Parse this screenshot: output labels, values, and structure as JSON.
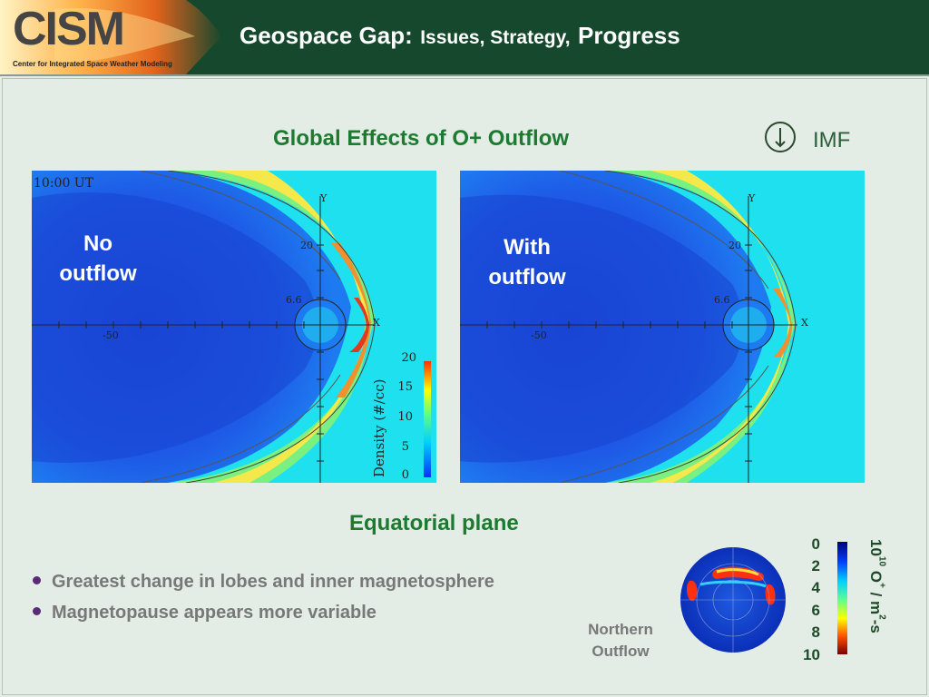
{
  "header": {
    "logo_text": "CISM",
    "logo_subtitle": "Center for Integrated Space Weather Modeling",
    "title_main": "Geospace Gap:",
    "title_sub": "Issues, Strategy,",
    "title_progress": "Progress",
    "colors": {
      "bar": "#16482d",
      "title_text": "#ffffff"
    }
  },
  "slide": {
    "heading": "Global Effects of O+ Outflow",
    "imf_label": "IMF",
    "imf_icon": "down-arrow-circle-icon",
    "equatorial_label": "Equatorial plane",
    "heading_color": "#1c7a31"
  },
  "panels": {
    "left": {
      "label_line1": "No",
      "label_line2": "outflow",
      "time": "10:00 UT",
      "axis_y": "Y",
      "axis_x": "X",
      "tick_20": "20",
      "tick_66": "6.6",
      "tick_m50": "-50"
    },
    "right": {
      "label_line1": "With",
      "label_line2": "outflow",
      "axis_y": "Y",
      "axis_x": "X",
      "tick_20": "20",
      "tick_66": "6.6",
      "tick_m50": "-50"
    }
  },
  "density_scale": {
    "title": "Density (#/cc)",
    "ticks": [
      "20",
      "15",
      "10",
      "5",
      "0"
    ]
  },
  "bullets": [
    "Greatest change in lobes and inner magnetosphere",
    "Magnetopause appears more variable"
  ],
  "northern_outflow": {
    "label_line1": "Northern",
    "label_line2": "Outflow",
    "scale_ticks": [
      "0",
      "2",
      "4",
      "6",
      "8",
      "10"
    ],
    "unit_base": "10",
    "unit_exp": "10",
    "unit_mid": " O",
    "unit_plus": "+",
    "unit_rest": " / m",
    "unit_exp2": "2",
    "unit_end": "-s"
  }
}
